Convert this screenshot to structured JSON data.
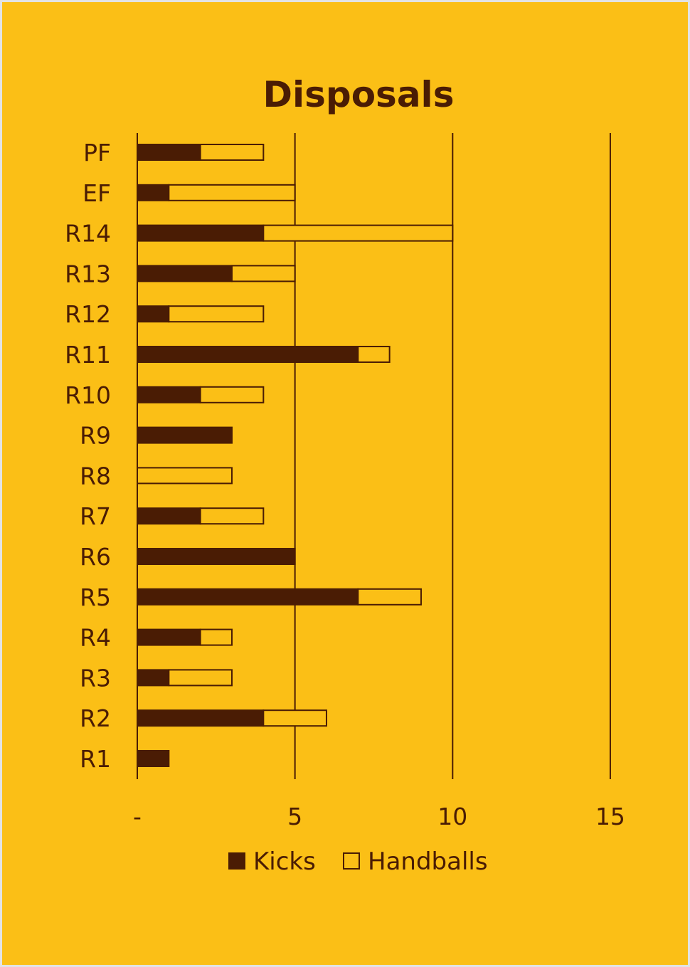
{
  "colors": {
    "background": "#FBBF16",
    "ink": "#4A1C04",
    "page_border": "#E3E3E3"
  },
  "chart_data": {
    "type": "bar",
    "orientation": "horizontal",
    "stacked": true,
    "title": "Disposals",
    "xlabel": "",
    "ylabel": "",
    "categories": [
      "PF",
      "EF",
      "R14",
      "R13",
      "R12",
      "R11",
      "R10",
      "R9",
      "R8",
      "R7",
      "R6",
      "R5",
      "R4",
      "R3",
      "R2",
      "R1"
    ],
    "series": [
      {
        "name": "Kicks",
        "fill": "solid",
        "values": [
          2,
          1,
          4,
          3,
          1,
          7,
          2,
          3,
          0,
          2,
          5,
          7,
          2,
          1,
          4,
          1
        ]
      },
      {
        "name": "Handballs",
        "fill": "hollow",
        "values": [
          2,
          4,
          6,
          2,
          3,
          1,
          2,
          0,
          3,
          2,
          0,
          2,
          1,
          2,
          2,
          0
        ]
      }
    ],
    "xlim": [
      0,
      15
    ],
    "xticks": [
      0,
      5,
      10,
      15
    ],
    "xtick_labels": [
      "-",
      "5",
      "10",
      "15"
    ],
    "grid": "vertical",
    "legend": "bottom"
  }
}
